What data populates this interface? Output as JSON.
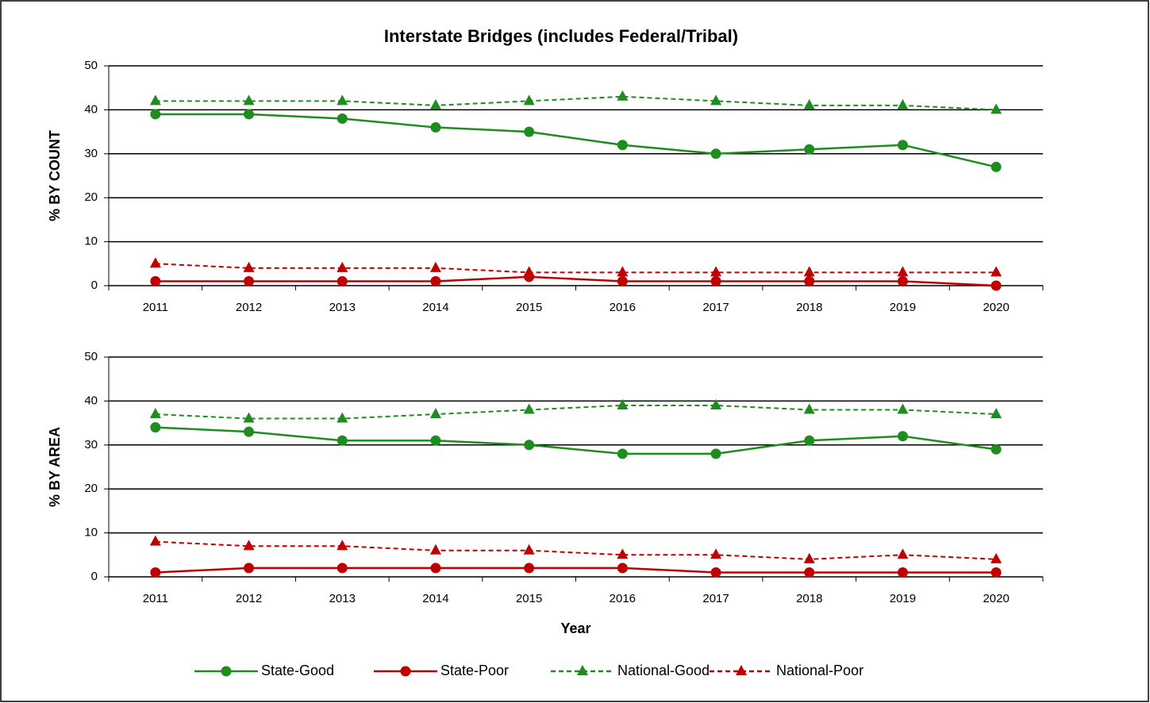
{
  "chart_data": [
    {
      "type": "line",
      "title": "Interstate Bridges (includes Federal/Tribal)",
      "ylabel": "% BY COUNT",
      "categories": [
        "2011",
        "2012",
        "2013",
        "2014",
        "2015",
        "2016",
        "2017",
        "2018",
        "2019",
        "2020"
      ],
      "ylim": [
        0,
        50
      ],
      "yticks": [
        0,
        10,
        20,
        30,
        40,
        50
      ],
      "grid": true,
      "legend": "bottom",
      "series": [
        {
          "name": "State-Good",
          "color": "#1e8c1e",
          "marker": "circle",
          "dashed": false,
          "values": [
            39,
            39,
            38,
            36,
            35,
            32,
            30,
            31,
            32,
            27
          ]
        },
        {
          "name": "State-Poor",
          "color": "#c00000",
          "marker": "circle",
          "dashed": false,
          "values": [
            1,
            1,
            1,
            1,
            2,
            1,
            1,
            1,
            1,
            0
          ]
        },
        {
          "name": "National-Good",
          "color": "#1e8c1e",
          "marker": "triangle",
          "dashed": true,
          "values": [
            42,
            42,
            42,
            41,
            42,
            43,
            42,
            41,
            41,
            40
          ]
        },
        {
          "name": "National-Poor",
          "color": "#c00000",
          "marker": "triangle",
          "dashed": true,
          "values": [
            5,
            4,
            4,
            4,
            3,
            3,
            3,
            3,
            3,
            3
          ]
        }
      ]
    },
    {
      "type": "line",
      "ylabel": "% BY AREA",
      "xlabel": "Year",
      "categories": [
        "2011",
        "2012",
        "2013",
        "2014",
        "2015",
        "2016",
        "2017",
        "2018",
        "2019",
        "2020"
      ],
      "ylim": [
        0,
        50
      ],
      "yticks": [
        0,
        10,
        20,
        30,
        40,
        50
      ],
      "grid": true,
      "series": [
        {
          "name": "State-Good",
          "color": "#1e8c1e",
          "marker": "circle",
          "dashed": false,
          "values": [
            34,
            33,
            31,
            31,
            30,
            28,
            28,
            31,
            32,
            29
          ]
        },
        {
          "name": "State-Poor",
          "color": "#c00000",
          "marker": "circle",
          "dashed": false,
          "values": [
            1,
            2,
            2,
            2,
            2,
            2,
            1,
            1,
            1,
            1
          ]
        },
        {
          "name": "National-Good",
          "color": "#1e8c1e",
          "marker": "triangle",
          "dashed": true,
          "values": [
            37,
            36,
            36,
            37,
            38,
            39,
            39,
            38,
            38,
            37
          ]
        },
        {
          "name": "National-Poor",
          "color": "#c00000",
          "marker": "triangle",
          "dashed": true,
          "values": [
            8,
            7,
            7,
            6,
            6,
            5,
            5,
            4,
            5,
            4
          ]
        }
      ]
    }
  ]
}
